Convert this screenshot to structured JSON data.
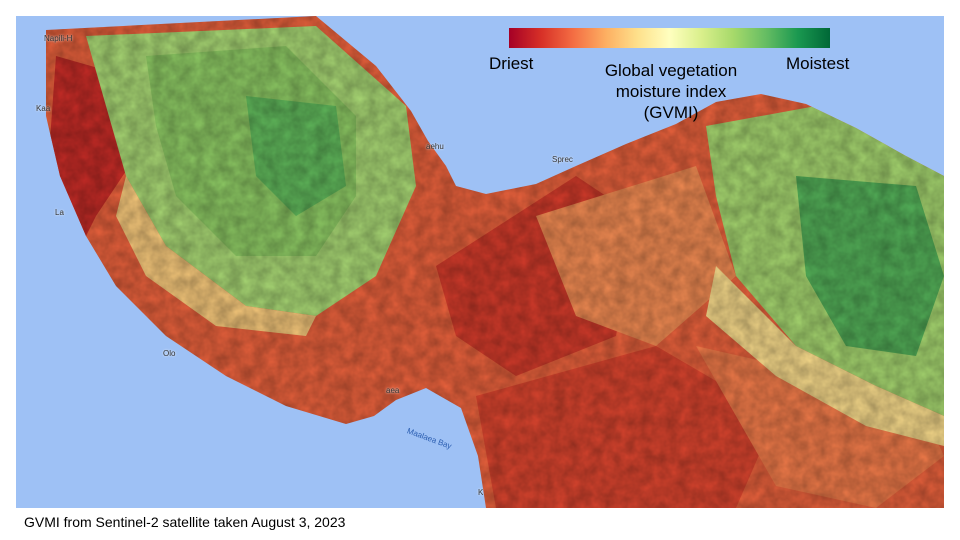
{
  "legend": {
    "min_label": "Driest",
    "max_label": "Moistest",
    "title_lines": [
      "Global vegetation",
      "moisture index",
      "(GVMI)"
    ],
    "colors": [
      "#a50026",
      "#d73027",
      "#f46d43",
      "#fdae61",
      "#fee08b",
      "#ffffbf",
      "#d9ef8b",
      "#a6d96a",
      "#66bd63",
      "#1a9850",
      "#006837"
    ]
  },
  "caption": "GVMI from Sentinel-2 satellite taken August 3, 2023",
  "map": {
    "ocean_color": "#9ec1f5",
    "bay_label": "Maalaea Bay",
    "place_labels": [
      "Napili-H",
      "Kaa",
      "La",
      "Olo",
      "aehu",
      "Sprec",
      "aea",
      "K"
    ]
  }
}
